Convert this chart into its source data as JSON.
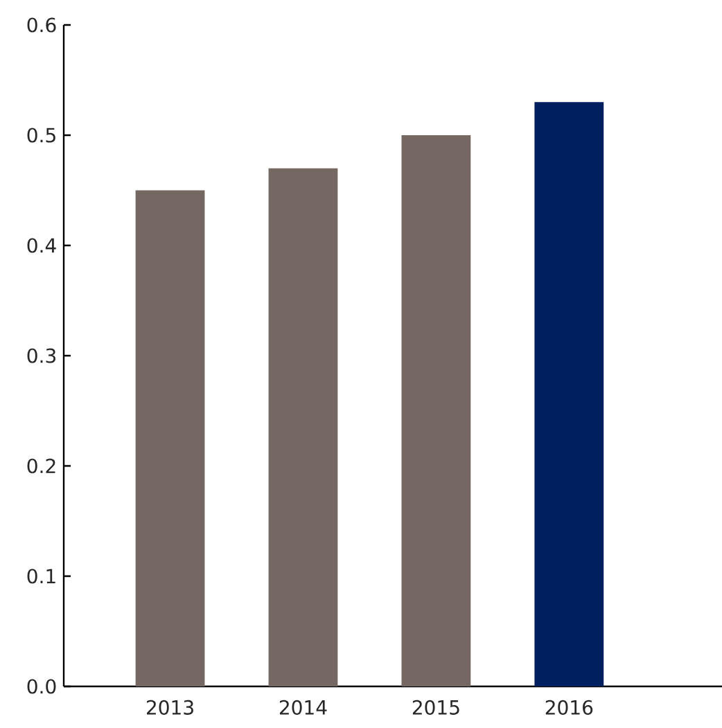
{
  "chart_data": {
    "type": "bar",
    "categories": [
      "2013",
      "2014",
      "2015",
      "2016"
    ],
    "values": [
      0.45,
      0.47,
      0.5,
      0.53
    ],
    "colors": [
      "#756762",
      "#756762",
      "#756762",
      "#001f5f"
    ],
    "ylim": [
      0,
      0.6
    ],
    "yticks": [
      {
        "value": 0,
        "label": "0.0"
      },
      0.1,
      0.2,
      0.3,
      0.4,
      0.5,
      0.6
    ],
    "grid": false
  }
}
